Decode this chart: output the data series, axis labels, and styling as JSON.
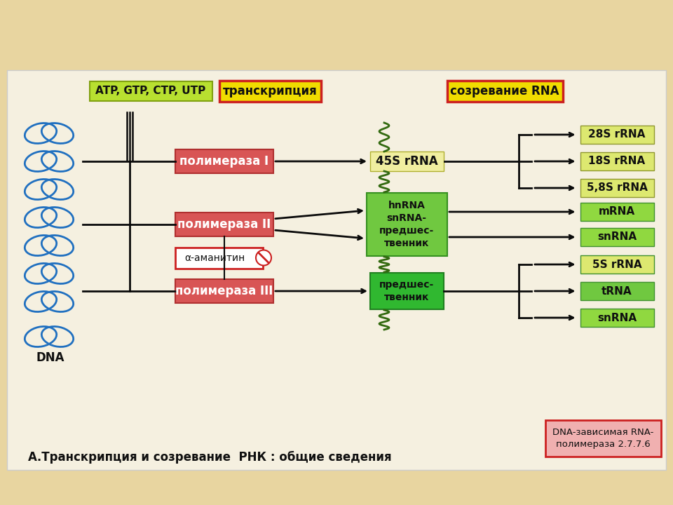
{
  "bg_header": "#e8d5a0",
  "bg_content": "#f5f0e0",
  "title_text": "А.Транскрипция и созревание  РНК : общие сведения",
  "atp_label": "ATP, GTP, CTP, UTP",
  "transkripcia_label": "транскрипция",
  "sozrevanie_label": "созревание RNA",
  "dna_label": "DNA",
  "polymerase_labels": [
    "полимераза I",
    "полимераза II",
    "полимераза III"
  ],
  "amanitine_label": "α-аманитин",
  "interm1_label": "45S rRNA",
  "interm2_label": "hnRNA\nsnRNA-\nпредшес-\nтвенник",
  "interm3_label": "предшес-\nтвенник",
  "product_labels_1": [
    "28S rRNA",
    "18S rRNA",
    "5,8S rRNA"
  ],
  "product_labels_2": [
    "mRNA",
    "snRNA"
  ],
  "product_labels_3": [
    "5S rRNA",
    "tRNA",
    "snRNA"
  ],
  "poly_box_color": "#d85555",
  "poly_box_edge": "#b03030",
  "atp_bg": "#b8e030",
  "atp_border": "#80a010",
  "transkripcia_bg": "#f0dc00",
  "transkripcia_border": "#cc2020",
  "sozrevanie_bg": "#f0dc00",
  "sozrevanie_border": "#cc2020",
  "interm1_bg": "#f0eea0",
  "interm2_bg": "#70c840",
  "interm3_bg": "#30b830",
  "product1_bg": "#dde870",
  "product2_bg": "#90d840",
  "product_trna_bg": "#70c840",
  "dnarnabox_bg": "#f0b0b0",
  "dnarnabox_border": "#cc2020",
  "line_color": "#0a0a0a",
  "arrow_color": "#0a0a0a",
  "amanitine_border": "#cc2020",
  "amanitine_bg": "#ffffff",
  "dna_color": "#2070c0"
}
